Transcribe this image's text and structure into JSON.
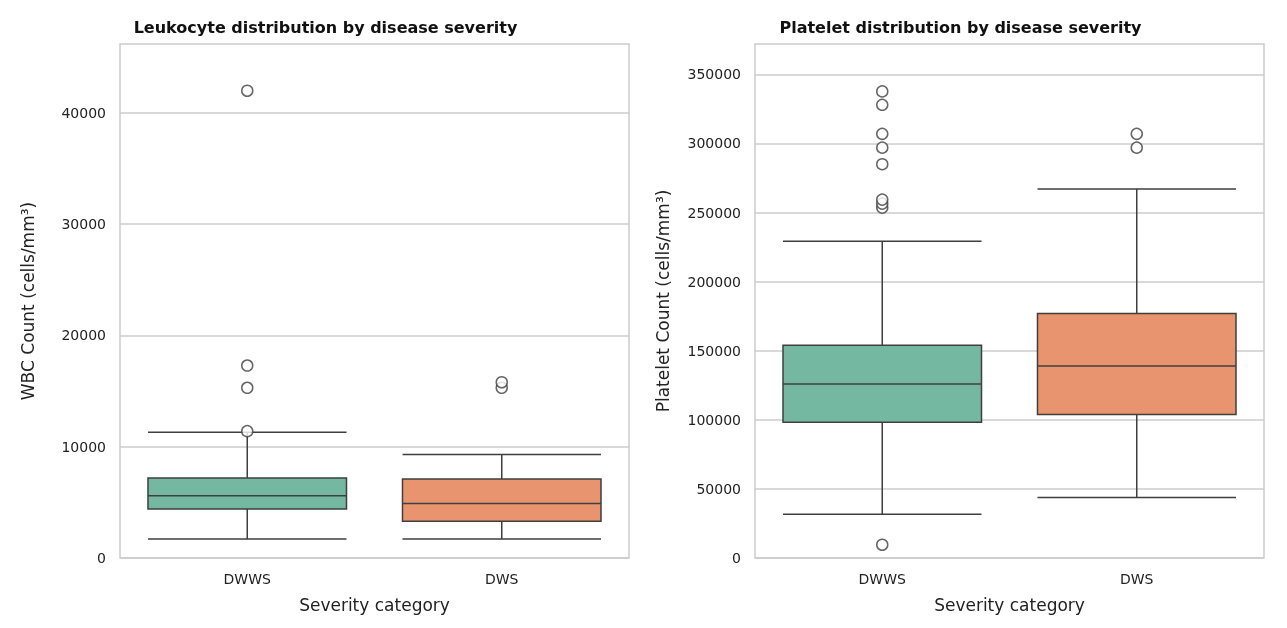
{
  "chart_data": [
    {
      "type": "box",
      "title": "Leukocyte distribution by disease severity",
      "xlabel": "Severity category",
      "ylabel": "WBC Count (cells/mm³)",
      "categories": [
        "DWWS",
        "DWS"
      ],
      "colors": [
        "#75b8a2",
        "#e8956f"
      ],
      "boxes": [
        {
          "low": 1700,
          "q1": 4400,
          "median": 5600,
          "q3": 7200,
          "high": 11300,
          "outliers": [
            11400,
            15300,
            17300,
            42000
          ]
        },
        {
          "low": 1700,
          "q1": 3300,
          "median": 4900,
          "q3": 7100,
          "high": 9300,
          "outliers": [
            15300,
            15800
          ]
        }
      ],
      "ylim": [
        0,
        46200
      ],
      "yticks": [
        0,
        10000,
        20000,
        30000,
        40000
      ],
      "grid": "y",
      "marker": "circle"
    },
    {
      "type": "box",
      "title": "Platelet distribution by disease severity",
      "xlabel": "Severity category",
      "ylabel": "Platelet Count (cells/mm³)",
      "categories": [
        "DWWS",
        "DWS"
      ],
      "colors": [
        "#75b8a2",
        "#e8956f"
      ],
      "boxes": [
        {
          "low": 31600,
          "q1": 98300,
          "median": 126000,
          "q3": 154000,
          "high": 229300,
          "outliers": [
            9600,
            253600,
            256500,
            259400,
            285000,
            297000,
            307000,
            328000,
            337700
          ]
        },
        {
          "low": 43800,
          "q1": 103800,
          "median": 139000,
          "q3": 177000,
          "high": 267000,
          "outliers": [
            297000,
            307000
          ]
        }
      ],
      "ylim": [
        0,
        372000
      ],
      "yticks": [
        0,
        50000,
        100000,
        150000,
        200000,
        250000,
        300000,
        350000
      ],
      "grid": "y",
      "marker": "circle"
    }
  ]
}
